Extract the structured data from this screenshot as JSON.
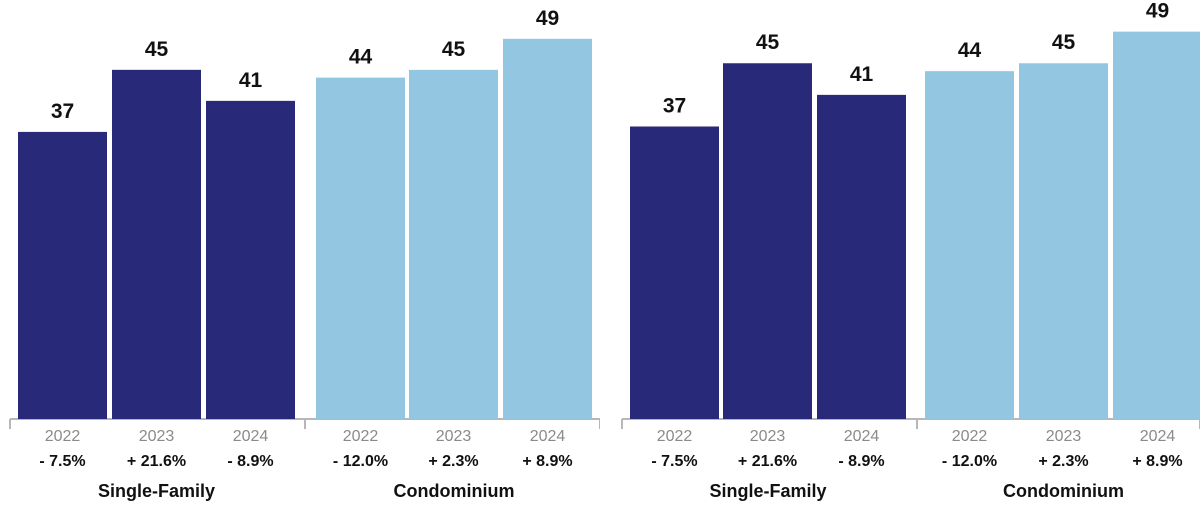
{
  "chart_data": [
    {
      "type": "bar",
      "title": "",
      "xlabel": "",
      "ylabel": "",
      "ylim": [
        0,
        54
      ],
      "grid": false,
      "groups": [
        {
          "name": "Single-Family",
          "color": "#29297a",
          "categories": [
            "2022",
            "2023",
            "2024"
          ],
          "values": [
            37,
            45,
            41
          ],
          "changes": [
            "- 7.5%",
            "+ 21.6%",
            "- 8.9%"
          ]
        },
        {
          "name": "Condominium",
          "color": "#93c6e1",
          "categories": [
            "2022",
            "2023",
            "2024"
          ],
          "values": [
            44,
            45,
            49
          ],
          "changes": [
            "- 12.0%",
            "+ 2.3%",
            "+ 8.9%"
          ]
        }
      ]
    },
    {
      "type": "bar",
      "title": "",
      "xlabel": "",
      "ylabel": "",
      "ylim": [
        0,
        53
      ],
      "grid": false,
      "groups": [
        {
          "name": "Single-Family",
          "color": "#29297a",
          "categories": [
            "2022",
            "2023",
            "2024"
          ],
          "values": [
            37,
            45,
            41
          ],
          "changes": [
            "- 7.5%",
            "+ 21.6%",
            "- 8.9%"
          ]
        },
        {
          "name": "Condominium",
          "color": "#93c6e1",
          "categories": [
            "2022",
            "2023",
            "2024"
          ],
          "values": [
            44,
            45,
            49
          ],
          "changes": [
            "- 12.0%",
            "+ 2.3%",
            "+ 8.9%"
          ]
        }
      ]
    }
  ]
}
